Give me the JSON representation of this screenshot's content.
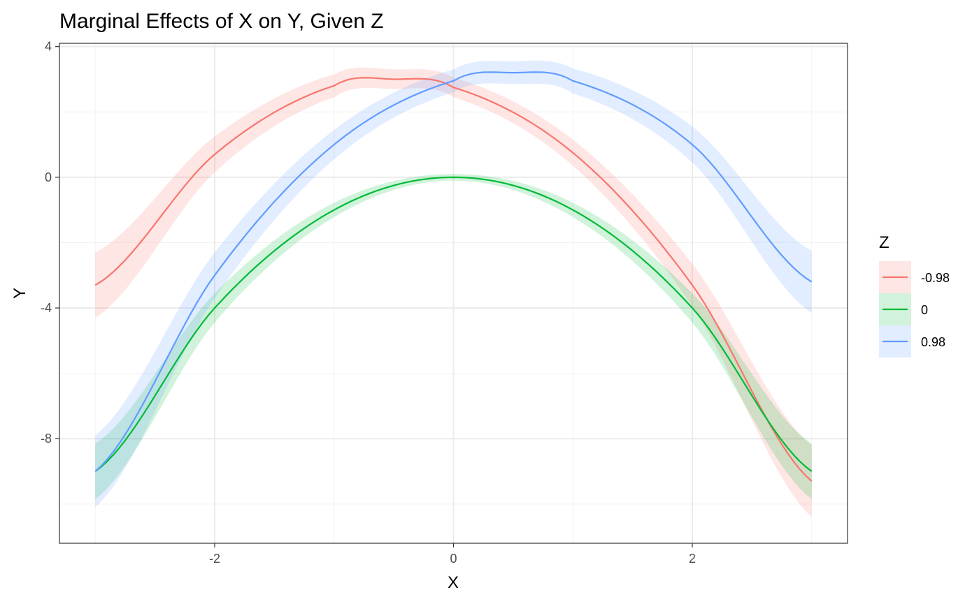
{
  "chart_data": {
    "type": "line",
    "title": "Marginal Effects of X on Y, Given Z",
    "xlabel": "X",
    "ylabel": "Y",
    "xlim": [
      -3.3,
      3.3
    ],
    "ylim": [
      -11.2,
      4.1
    ],
    "x_ticks": [
      -2,
      0,
      2
    ],
    "x_tick_labels": [
      "-2",
      "0",
      "2"
    ],
    "y_ticks": [
      -8,
      -4,
      0,
      4
    ],
    "y_tick_labels": [
      "-8",
      "-4",
      "0",
      "4"
    ],
    "grid": true,
    "legend": {
      "title": "Z",
      "position": "right"
    },
    "confidence_band": true,
    "series": [
      {
        "name": "-0.98",
        "color": "#F8766D",
        "x": [
          -3,
          -2,
          -1,
          -0.5,
          0,
          1,
          2,
          3
        ],
        "y": [
          -3.3,
          0.7,
          2.8,
          3.0,
          2.75,
          0.75,
          -3.3,
          -9.3
        ],
        "band_halfwidth": [
          1.0,
          0.55,
          0.35,
          0.3,
          0.3,
          0.4,
          0.65,
          1.1
        ]
      },
      {
        "name": "0",
        "color": "#00BA38",
        "x": [
          -3,
          -2,
          -1,
          0,
          1,
          2,
          3
        ],
        "y": [
          -9.0,
          -4.0,
          -1.0,
          0.0,
          -1.0,
          -4.0,
          -9.0
        ],
        "band_halfwidth": [
          0.85,
          0.45,
          0.22,
          0.1,
          0.22,
          0.45,
          0.85
        ]
      },
      {
        "name": "0.98",
        "color": "#619CFF",
        "x": [
          -3,
          -2,
          -1,
          0,
          0.5,
          1,
          2,
          3
        ],
        "y": [
          -9.0,
          -3.0,
          1.0,
          2.95,
          3.2,
          2.95,
          1.0,
          -3.2
        ],
        "band_halfwidth": [
          1.1,
          0.7,
          0.45,
          0.35,
          0.35,
          0.38,
          0.55,
          0.95
        ]
      }
    ]
  }
}
